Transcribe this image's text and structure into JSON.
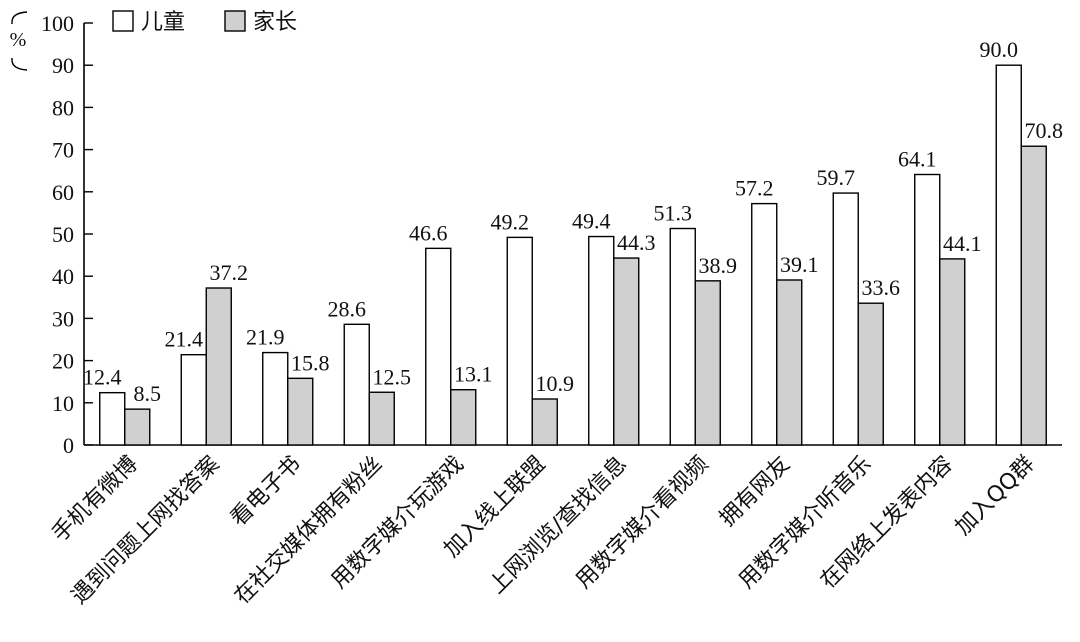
{
  "chart_data": {
    "type": "bar",
    "ylabel": "%",
    "ylim": [
      0,
      100
    ],
    "yticks": [
      0,
      10,
      20,
      30,
      40,
      50,
      60,
      70,
      80,
      90,
      100
    ],
    "legend_position": "top-left",
    "categories": [
      "手机有微博",
      "遇到问题上网找答案",
      "看电子书",
      "在社交媒体拥有粉丝",
      "用数字媒介玩游戏",
      "加入线上联盟",
      "上网浏览/查找信息",
      "用数字媒介看视频",
      "拥有网友",
      "用数字媒介听音乐",
      "在网络上发表内容",
      "加入QQ群"
    ],
    "series": [
      {
        "name": "儿童",
        "color": "#ffffff",
        "values": [
          12.4,
          21.4,
          21.9,
          28.6,
          46.6,
          49.2,
          49.4,
          51.3,
          57.2,
          59.7,
          64.1,
          90.0
        ],
        "labels": [
          "12.4",
          "21.4",
          "21.9",
          "28.6",
          "46.6",
          "49.2",
          "49.4",
          "51.3",
          "57.2",
          "59.7",
          "64.1",
          "90.0"
        ]
      },
      {
        "name": "家长",
        "color": "#d0d0d0",
        "values": [
          8.5,
          37.2,
          15.8,
          12.5,
          13.1,
          10.9,
          44.3,
          38.9,
          39.1,
          33.6,
          44.1,
          70.8
        ],
        "labels": [
          "8.5",
          "37.2",
          "15.8",
          "12.5",
          "13.1",
          "10.9",
          "44.3",
          "38.9",
          "39.1",
          "33.6",
          "44.1",
          "70.8"
        ]
      }
    ]
  }
}
